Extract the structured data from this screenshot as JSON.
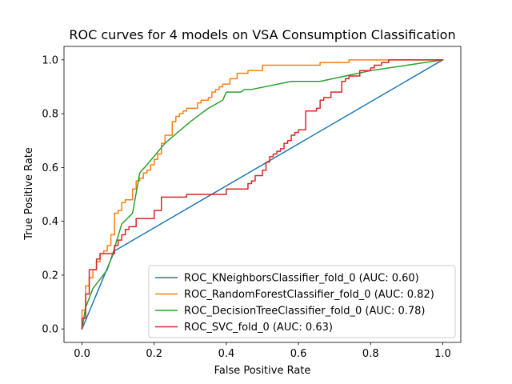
{
  "chart_data": {
    "type": "line",
    "title": "ROC curves for 4 models on VSA Consumption Classification",
    "xlabel": "False Positive Rate",
    "ylabel": "True Positive Rate",
    "xlim": [
      -0.05,
      1.05
    ],
    "ylim": [
      -0.05,
      1.05
    ],
    "xticks": [
      "0.0",
      "0.2",
      "0.4",
      "0.6",
      "0.8",
      "1.0"
    ],
    "yticks": [
      "0.0",
      "0.2",
      "0.4",
      "0.6",
      "0.8",
      "1.0"
    ],
    "grid": false,
    "legend_position": "lower-right",
    "series": [
      {
        "name": "ROC_KNeighborsClassifier_fold_0 (AUC: 0.60)",
        "color": "#1f77b4",
        "x": [
          0.0,
          0.09,
          1.0
        ],
        "y": [
          0.0,
          0.29,
          1.0
        ]
      },
      {
        "name": "ROC_RandomForestClassifier_fold_0 (AUC: 0.82)",
        "color": "#ff7f0e",
        "x": [
          0.0,
          0.0,
          0.01,
          0.01,
          0.02,
          0.02,
          0.03,
          0.03,
          0.04,
          0.04,
          0.05,
          0.05,
          0.06,
          0.06,
          0.07,
          0.07,
          0.08,
          0.08,
          0.09,
          0.09,
          0.1,
          0.1,
          0.11,
          0.11,
          0.12,
          0.12,
          0.14,
          0.14,
          0.15,
          0.15,
          0.16,
          0.16,
          0.17,
          0.17,
          0.18,
          0.18,
          0.19,
          0.19,
          0.2,
          0.2,
          0.21,
          0.21,
          0.22,
          0.22,
          0.23,
          0.23,
          0.25,
          0.25,
          0.26,
          0.26,
          0.27,
          0.27,
          0.28,
          0.28,
          0.29,
          0.29,
          0.32,
          0.32,
          0.33,
          0.33,
          0.35,
          0.35,
          0.36,
          0.36,
          0.37,
          0.37,
          0.38,
          0.38,
          0.39,
          0.39,
          0.41,
          0.41,
          0.43,
          0.43,
          0.46,
          0.46,
          0.5,
          0.5,
          0.66,
          0.66,
          0.74,
          0.74,
          1.0
        ],
        "y": [
          0.0,
          0.07,
          0.07,
          0.16,
          0.16,
          0.19,
          0.19,
          0.22,
          0.22,
          0.25,
          0.25,
          0.28,
          0.28,
          0.29,
          0.29,
          0.31,
          0.31,
          0.35,
          0.35,
          0.43,
          0.43,
          0.44,
          0.44,
          0.47,
          0.47,
          0.48,
          0.48,
          0.52,
          0.52,
          0.55,
          0.55,
          0.56,
          0.56,
          0.58,
          0.58,
          0.59,
          0.59,
          0.61,
          0.61,
          0.63,
          0.63,
          0.65,
          0.65,
          0.69,
          0.69,
          0.72,
          0.72,
          0.77,
          0.77,
          0.79,
          0.79,
          0.8,
          0.8,
          0.81,
          0.81,
          0.82,
          0.82,
          0.84,
          0.84,
          0.85,
          0.85,
          0.86,
          0.86,
          0.88,
          0.88,
          0.89,
          0.89,
          0.9,
          0.9,
          0.91,
          0.91,
          0.93,
          0.93,
          0.95,
          0.95,
          0.96,
          0.96,
          0.98,
          0.98,
          0.99,
          0.99,
          1.0,
          1.0
        ]
      },
      {
        "name": "ROC_DecisionTreeClassifier_fold_0 (AUC: 0.78)",
        "color": "#2ca02c",
        "x": [
          0.0,
          0.01,
          0.03,
          0.07,
          0.09,
          0.11,
          0.14,
          0.16,
          0.18,
          0.23,
          0.3,
          0.35,
          0.39,
          0.4,
          0.41,
          0.44,
          0.45,
          0.47,
          0.58,
          0.66,
          0.8,
          1.0
        ],
        "y": [
          0.0,
          0.08,
          0.15,
          0.22,
          0.3,
          0.39,
          0.43,
          0.58,
          0.61,
          0.69,
          0.77,
          0.82,
          0.85,
          0.88,
          0.88,
          0.88,
          0.89,
          0.89,
          0.92,
          0.92,
          0.96,
          1.0
        ]
      },
      {
        "name": "ROC_SVC_fold_0 (AUC: 0.63)",
        "color": "#d62728",
        "x": [
          0.0,
          0.0,
          0.01,
          0.01,
          0.02,
          0.02,
          0.04,
          0.04,
          0.05,
          0.05,
          0.09,
          0.09,
          0.1,
          0.1,
          0.11,
          0.11,
          0.12,
          0.12,
          0.13,
          0.13,
          0.15,
          0.15,
          0.2,
          0.2,
          0.22,
          0.22,
          0.29,
          0.29,
          0.4,
          0.4,
          0.46,
          0.46,
          0.47,
          0.47,
          0.48,
          0.48,
          0.5,
          0.5,
          0.51,
          0.51,
          0.52,
          0.52,
          0.53,
          0.53,
          0.54,
          0.54,
          0.55,
          0.55,
          0.56,
          0.56,
          0.57,
          0.57,
          0.58,
          0.58,
          0.59,
          0.59,
          0.6,
          0.6,
          0.62,
          0.62,
          0.65,
          0.65,
          0.66,
          0.66,
          0.67,
          0.67,
          0.69,
          0.69,
          0.72,
          0.72,
          0.73,
          0.73,
          0.74,
          0.74,
          0.77,
          0.77,
          0.8,
          0.8,
          0.81,
          0.81,
          0.83,
          0.83,
          0.85,
          0.85,
          0.87,
          0.87,
          1.0
        ],
        "y": [
          0.0,
          0.04,
          0.04,
          0.13,
          0.13,
          0.22,
          0.22,
          0.26,
          0.26,
          0.28,
          0.28,
          0.31,
          0.31,
          0.33,
          0.33,
          0.35,
          0.35,
          0.37,
          0.37,
          0.38,
          0.38,
          0.41,
          0.41,
          0.44,
          0.44,
          0.49,
          0.49,
          0.5,
          0.5,
          0.52,
          0.52,
          0.54,
          0.54,
          0.55,
          0.55,
          0.57,
          0.57,
          0.59,
          0.59,
          0.62,
          0.62,
          0.64,
          0.64,
          0.65,
          0.65,
          0.66,
          0.66,
          0.67,
          0.67,
          0.69,
          0.69,
          0.7,
          0.7,
          0.72,
          0.72,
          0.73,
          0.73,
          0.74,
          0.74,
          0.81,
          0.81,
          0.82,
          0.82,
          0.85,
          0.85,
          0.86,
          0.86,
          0.88,
          0.88,
          0.92,
          0.92,
          0.93,
          0.93,
          0.94,
          0.94,
          0.96,
          0.96,
          0.97,
          0.97,
          0.98,
          0.98,
          0.99,
          0.99,
          1.0,
          1.0,
          1.0,
          1.0
        ]
      }
    ]
  }
}
